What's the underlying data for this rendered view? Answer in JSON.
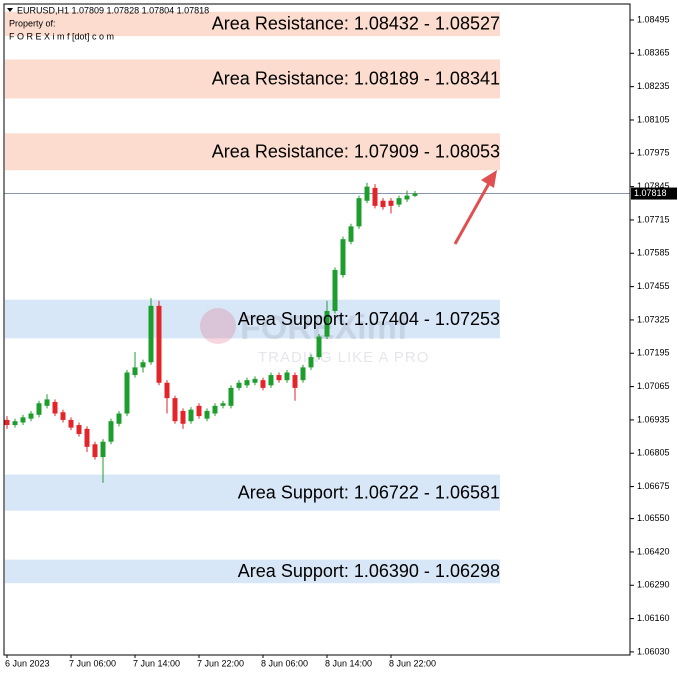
{
  "chart_data": {
    "type": "candlestick",
    "title": "EURUSD,H1 1.07809 1.07828 1.07804 1.07818",
    "subtitle": "Property of:",
    "owner": "F O R E X i m f [dot] c o m",
    "watermark": "FOREXimf",
    "watermark_tagline": "TRADING LIKE A PRO",
    "categories": [
      "6 Jun 2023",
      null,
      null,
      null,
      null,
      null,
      null,
      null,
      "7 Jun 06:00",
      null,
      null,
      null,
      null,
      null,
      null,
      null,
      "7 Jun 14:00",
      null,
      null,
      null,
      null,
      null,
      null,
      null,
      "7 Jun 22:00",
      null,
      null,
      null,
      null,
      null,
      null,
      null,
      "8 Jun 06:00",
      null,
      null,
      null,
      null,
      null,
      null,
      null,
      "8 Jun 14:00",
      null,
      null,
      null,
      null,
      null,
      null,
      null,
      "8 Jun 22:00",
      null,
      null,
      null
    ],
    "open": [
      1.06935,
      1.06915,
      1.06925,
      1.0694,
      1.06955,
      1.0699,
      1.07005,
      1.06965,
      1.06935,
      1.06915,
      1.069,
      1.0684,
      1.0679,
      1.0685,
      1.0692,
      1.0696,
      1.0711,
      1.0714,
      1.0716,
      1.0738,
      1.0708,
      1.0702,
      1.0697,
      1.0693,
      1.0699,
      1.0694,
      1.0696,
      1.0699,
      1.0699,
      1.0706,
      1.0707,
      1.0708,
      1.0709,
      1.0707,
      1.0711,
      1.0709,
      1.0711,
      1.0709,
      1.0714,
      1.0718,
      1.0726,
      1.0736,
      1.075,
      1.0763,
      1.0769,
      1.0779,
      1.0784,
      1.0779,
      1.0779,
      1.07775,
      1.07795,
      1.07809
    ],
    "high": [
      1.0695,
      1.0694,
      1.06955,
      1.0697,
      1.0701,
      1.07035,
      1.07015,
      1.06975,
      1.06945,
      1.06925,
      1.0691,
      1.0685,
      1.0686,
      1.0694,
      1.0697,
      1.0713,
      1.072,
      1.0717,
      1.0741,
      1.074,
      1.0709,
      1.0703,
      1.0698,
      1.06985,
      1.07,
      1.0698,
      1.07,
      1.0701,
      1.0707,
      1.0709,
      1.071,
      1.07105,
      1.071,
      1.0712,
      1.0712,
      1.0713,
      1.0712,
      1.0715,
      1.0719,
      1.0727,
      1.074,
      1.0753,
      1.0765,
      1.077,
      1.0781,
      1.0786,
      1.07855,
      1.078,
      1.078,
      1.0781,
      1.0783,
      1.07828
    ],
    "low": [
      1.069,
      1.06905,
      1.06915,
      1.0693,
      1.06945,
      1.0698,
      1.0695,
      1.06925,
      1.06895,
      1.0687,
      1.0681,
      1.0678,
      1.0669,
      1.0684,
      1.0691,
      1.0695,
      1.071,
      1.0712,
      1.0715,
      1.0707,
      1.0696,
      1.0692,
      1.069,
      1.0692,
      1.0694,
      1.0693,
      1.0695,
      1.0698,
      1.0698,
      1.0705,
      1.0706,
      1.0707,
      1.0705,
      1.0706,
      1.0708,
      1.0708,
      1.0701,
      1.0708,
      1.0713,
      1.0717,
      1.0725,
      1.0735,
      1.0749,
      1.0762,
      1.0768,
      1.0778,
      1.0776,
      1.07755,
      1.0774,
      1.07765,
      1.07785,
      1.07804
    ],
    "close": [
      1.06915,
      1.0693,
      1.06945,
      1.0696,
      1.07,
      1.07015,
      1.0696,
      1.06935,
      1.06905,
      1.0688,
      1.0683,
      1.0679,
      1.0685,
      1.0693,
      1.0696,
      1.0712,
      1.0714,
      1.0716,
      1.0738,
      1.0708,
      1.0702,
      1.0693,
      1.0692,
      1.06975,
      1.0695,
      1.0697,
      1.0699,
      1.07,
      1.0706,
      1.0708,
      1.0709,
      1.07095,
      1.0706,
      1.0711,
      1.0709,
      1.0712,
      1.0706,
      1.0714,
      1.0718,
      1.0726,
      1.0736,
      1.0752,
      1.0764,
      1.0769,
      1.078,
      1.07845,
      1.0777,
      1.07765,
      1.0777,
      1.078,
      1.0781,
      1.07818
    ],
    "up_color": "#1f9c2e",
    "down_color": "#e0262b",
    "last_price": 1.07818,
    "zones": [
      {
        "label": "Area Resistance: 1.08432 - 1.08527",
        "low": 1.08432,
        "high": 1.08527,
        "color": "#fbdccf"
      },
      {
        "label": "Area Resistance: 1.08189 - 1.08341",
        "low": 1.08189,
        "high": 1.08341,
        "color": "#fbdccf"
      },
      {
        "label": "Area Resistance: 1.07909 - 1.08053",
        "low": 1.07909,
        "high": 1.08053,
        "color": "#fbdccf"
      },
      {
        "label": "Area Support: 1.07404 - 1.07253",
        "low": 1.07253,
        "high": 1.07404,
        "color": "#d8e7f7"
      },
      {
        "label": "Area Support: 1.06722 - 1.06581",
        "low": 1.06581,
        "high": 1.06722,
        "color": "#d8e7f7"
      },
      {
        "label": "Area Support: 1.06390 - 1.06298",
        "low": 1.06298,
        "high": 1.0639,
        "color": "#d8e7f7"
      }
    ],
    "ylim": [
      1.06018,
      1.08573
    ],
    "yticks": [
      1.08495,
      1.08365,
      1.08235,
      1.08105,
      1.07975,
      1.07845,
      1.07715,
      1.07585,
      1.07455,
      1.07325,
      1.07195,
      1.07065,
      1.06935,
      1.06805,
      1.06675,
      {
        "value": 1.0655,
        "label": "1.06550"
      },
      {
        "value": 1.0642,
        "label": "1.06420"
      },
      {
        "value": 1.0629,
        "label": "1.06290"
      },
      {
        "value": 1.0616,
        "label": "1.06160"
      },
      {
        "value": 1.0603,
        "label": "1.06030"
      }
    ]
  }
}
